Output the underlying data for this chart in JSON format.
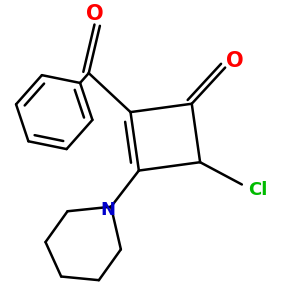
{
  "background_color": "#ffffff",
  "atom_color_O": "#ff0000",
  "atom_color_N": "#0000cc",
  "atom_color_Cl": "#00bb00",
  "line_color": "#000000",
  "line_width": 1.8,
  "figsize": [
    3.0,
    3.0
  ],
  "dpi": 100,
  "xlim": [
    -2.5,
    2.5
  ],
  "ylim": [
    -2.8,
    2.5
  ]
}
